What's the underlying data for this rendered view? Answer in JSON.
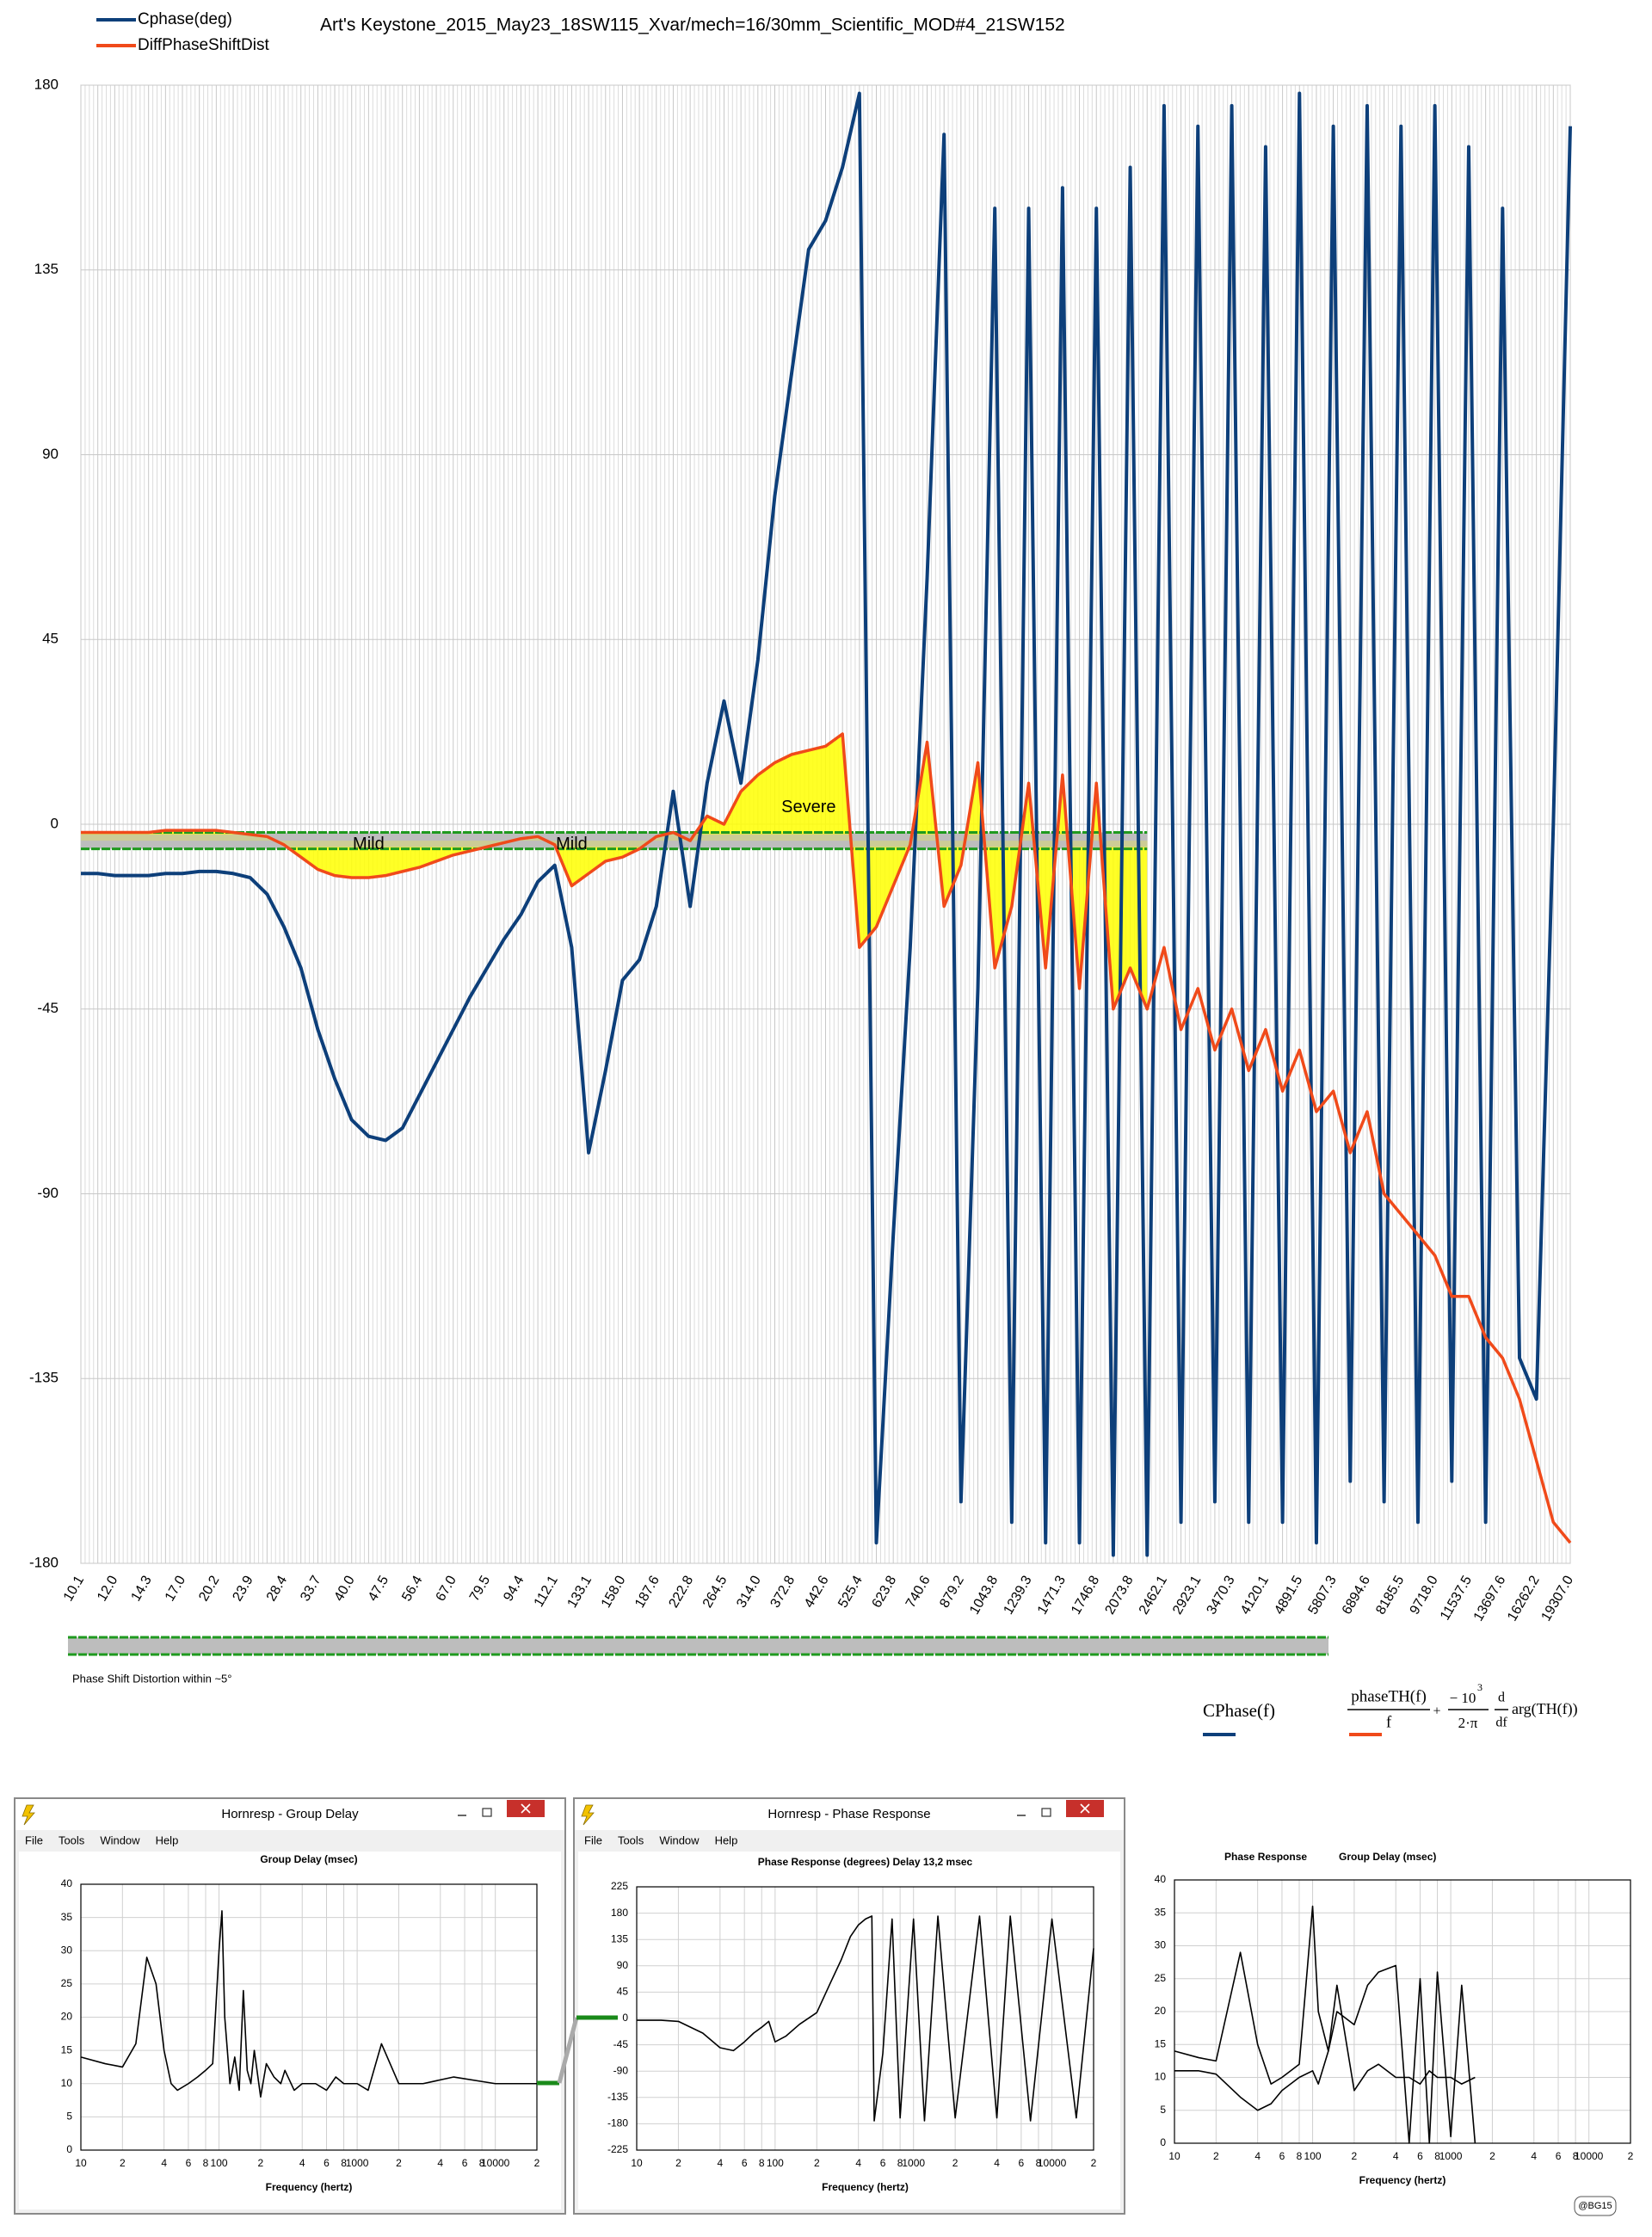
{
  "chart_data": [
    {
      "type": "line",
      "title": "Art's Keystone_2015_May23_18SW115_Xvar/mech=16/30mm_Scientific_MOD#4_21SW152",
      "categories": [
        "10.1",
        null,
        "12.0",
        null,
        "14.3",
        null,
        "17.0",
        null,
        "20.2",
        null,
        "23.9",
        null,
        "28.4",
        null,
        "33.7",
        null,
        "40.0",
        null,
        "47.5",
        null,
        "56.4",
        null,
        "67.0",
        null,
        "79.5",
        null,
        "94.4",
        null,
        "112.1",
        null,
        "133.1",
        null,
        "158.0",
        null,
        "187.6",
        null,
        "222.8",
        null,
        "264.5",
        null,
        "314.0",
        null,
        "372.8",
        null,
        "442.6",
        null,
        "525.4",
        null,
        "623.8",
        null,
        "740.6",
        null,
        "879.2",
        null,
        "1043.8",
        null,
        "1239.3",
        null,
        "1471.3",
        null,
        "1746.8",
        null,
        "2073.8",
        null,
        "2462.1",
        null,
        "2923.1",
        null,
        "3470.3",
        null,
        "4120.1",
        null,
        "4891.5",
        null,
        "5807.3",
        null,
        "6894.6",
        null,
        "8185.5",
        null,
        "9718.0",
        null,
        "11537.5",
        null,
        "13697.6",
        null,
        "16262.2",
        null,
        "19307.0"
      ],
      "series": [
        {
          "name": "Cphase(deg)",
          "color": "#0d3f7a",
          "values": [
            -12,
            -12,
            -12.5,
            -12.5,
            -12.5,
            -12,
            -12,
            -11.5,
            -11.5,
            -12,
            -13,
            -17,
            -25,
            -35,
            -50,
            -62,
            -72,
            -76,
            -77,
            -74,
            -66,
            -58,
            -50,
            -42,
            -35,
            -28,
            -22,
            -14,
            -10,
            -30,
            -80,
            -60,
            -38,
            -33,
            -20,
            8,
            -20,
            10,
            30,
            10,
            40,
            80,
            110,
            140,
            147,
            160,
            178,
            -175,
            -100,
            -30,
            60,
            168,
            -165,
            -40,
            150,
            -170,
            150,
            -175,
            155,
            -175,
            150,
            -178,
            160,
            -178,
            175,
            -170,
            170,
            -165,
            175,
            -170,
            165,
            -170,
            178,
            -175,
            170,
            -160,
            175,
            -165,
            170,
            -170,
            175,
            -160,
            165,
            -170,
            150,
            -130,
            -140,
            0,
            170
          ]
        },
        {
          "name": "DiffPhaseShiftDist",
          "color": "#f04a1a",
          "values": [
            -2,
            -2,
            -2,
            -2,
            -2,
            -1.5,
            -1.5,
            -1.5,
            -1.5,
            -2,
            -2.5,
            -3,
            -5,
            -8,
            -11,
            -12.5,
            -13,
            -13,
            -12.5,
            -11.5,
            -10.5,
            -9,
            -7.5,
            -6.5,
            -5.5,
            -4.5,
            -3.5,
            -3,
            -5,
            -15,
            -12,
            -9,
            -8,
            -6,
            -3,
            -2,
            -4,
            2,
            0,
            8,
            12,
            15,
            17,
            18,
            19,
            22,
            -30,
            -25,
            -15,
            -5,
            20,
            -20,
            -10,
            15,
            -35,
            -20,
            10,
            -35,
            12,
            -40,
            10,
            -45,
            -35,
            -45,
            -30,
            -50,
            -40,
            -55,
            -45,
            -60,
            -50,
            -65,
            -55,
            -70,
            -65,
            -80,
            -70,
            -90,
            -95,
            -100,
            -105,
            -115,
            -115,
            -125,
            -130,
            -140,
            -155,
            -170,
            -175
          ]
        }
      ],
      "ylim": [
        -180,
        180
      ],
      "yticks": [
        -180,
        -135,
        -90,
        -45,
        0,
        45,
        90,
        135,
        180
      ],
      "grid": true,
      "annotations": [
        "Mild",
        "Mild",
        "Severe"
      ],
      "tolerance_band": [
        -6,
        -2
      ],
      "band_label": "Phase Shift Distortion within ~5°",
      "bottom_legend": "CPhase(f)",
      "formula": {
        "num1": "phaseTH(f)",
        "den1": "f",
        "plus": "+",
        "num2": "− 10",
        "exp": "3",
        "den2": "2·π",
        "d": "d",
        "df": "df",
        "tail": "arg(TH(f))"
      }
    },
    {
      "type": "line",
      "window_title": "Hornresp - Group Delay",
      "menu": [
        "File",
        "Tools",
        "Window",
        "Help"
      ],
      "title": "Group Delay (msec)",
      "xlabel": "Frequency (hertz)",
      "log_x": true,
      "x": [
        10,
        15,
        20,
        25,
        30,
        35,
        40,
        45,
        50,
        60,
        70,
        80,
        90,
        100,
        105,
        110,
        120,
        130,
        140,
        150,
        160,
        170,
        180,
        200,
        220,
        250,
        280,
        300,
        350,
        400,
        500,
        600,
        700,
        800,
        1000,
        1200,
        1500,
        2000,
        3000,
        5000,
        10000,
        20000
      ],
      "values": [
        14,
        13,
        12.5,
        16,
        29,
        25,
        15,
        10,
        9,
        10,
        11,
        12,
        13,
        30,
        36,
        20,
        10,
        14,
        9,
        24,
        12,
        10,
        15,
        8,
        13,
        11,
        10,
        12,
        9,
        10,
        10,
        9,
        11,
        10,
        10,
        9,
        16,
        10,
        10,
        11,
        10,
        10
      ],
      "color": "#000000",
      "xlim": [
        10,
        20000
      ],
      "xticks": [
        10,
        {
          "value": 20,
          "label": "2"
        },
        {
          "value": 40,
          "label": "4"
        },
        {
          "value": 60,
          "label": "6"
        },
        {
          "value": 80,
          "label": "8"
        },
        100,
        {
          "value": 200,
          "label": "2"
        },
        {
          "value": 400,
          "label": "4"
        },
        {
          "value": 600,
          "label": "6"
        },
        {
          "value": 800,
          "label": "8"
        },
        1000,
        {
          "value": 2000,
          "label": "2"
        },
        {
          "value": 4000,
          "label": "4"
        },
        {
          "value": 6000,
          "label": "6"
        },
        {
          "value": 8000,
          "label": "8"
        },
        10000,
        {
          "value": 20000,
          "label": "2"
        }
      ],
      "ylim": [
        0,
        40
      ],
      "yticks": [
        0,
        5,
        10,
        15,
        20,
        25,
        30,
        35,
        40
      ]
    },
    {
      "type": "line",
      "window_title": "Hornresp - Phase Response",
      "menu": [
        "File",
        "Tools",
        "Window",
        "Help"
      ],
      "title": "Phase Response (degrees)   Delay 13,2 msec",
      "xlabel": "Frequency (hertz)",
      "log_x": true,
      "x": [
        10,
        15,
        20,
        30,
        40,
        50,
        60,
        70,
        80,
        90,
        100,
        120,
        150,
        200,
        250,
        300,
        350,
        400,
        450,
        500,
        520,
        600,
        700,
        800,
        1000,
        1200,
        1500,
        2000,
        3000,
        4000,
        5000,
        7000,
        10000,
        15000,
        20000
      ],
      "values": [
        -3,
        -3,
        -5,
        -25,
        -50,
        -55,
        -40,
        -25,
        -15,
        -5,
        -40,
        -30,
        -10,
        10,
        60,
        100,
        140,
        160,
        170,
        175,
        -175,
        -60,
        170,
        -170,
        170,
        -175,
        175,
        -170,
        175,
        -170,
        175,
        -175,
        170,
        -170,
        120
      ],
      "color": "#000000",
      "xlim": [
        10,
        20000
      ],
      "xticks": [
        10,
        {
          "value": 20,
          "label": "2"
        },
        {
          "value": 40,
          "label": "4"
        },
        {
          "value": 60,
          "label": "6"
        },
        {
          "value": 80,
          "label": "8"
        },
        100,
        {
          "value": 200,
          "label": "2"
        },
        {
          "value": 400,
          "label": "4"
        },
        {
          "value": 600,
          "label": "6"
        },
        {
          "value": 800,
          "label": "8"
        },
        1000,
        {
          "value": 2000,
          "label": "2"
        },
        {
          "value": 4000,
          "label": "4"
        },
        {
          "value": 6000,
          "label": "6"
        },
        {
          "value": 8000,
          "label": "8"
        },
        10000,
        {
          "value": 20000,
          "label": "2"
        }
      ],
      "ylim": [
        -225,
        225
      ],
      "yticks": [
        -225,
        -180,
        -135,
        -90,
        -45,
        0,
        45,
        90,
        135,
        180,
        225
      ]
    },
    {
      "type": "line",
      "xlabel": "Frequency (hertz)",
      "log_x": true,
      "x": [
        10,
        15,
        20,
        30,
        40,
        50,
        60,
        80,
        100,
        110,
        130,
        150,
        200,
        250,
        300,
        400,
        500,
        600,
        700,
        800,
        1000,
        1200,
        1500
      ],
      "series": [
        {
          "name": "Phase Response",
          "color": "#000000",
          "values": [
            11,
            11,
            10.5,
            7,
            5,
            6,
            8,
            10,
            11,
            9,
            14,
            20,
            18,
            24,
            26,
            27,
            0,
            25,
            0,
            26,
            1,
            24,
            0
          ]
        },
        {
          "name": "Group Delay (msec)",
          "color": "#000000",
          "values": [
            14,
            13,
            12.5,
            29,
            15,
            9,
            10,
            12,
            36,
            20,
            14,
            24,
            8,
            11,
            12,
            10,
            10,
            9,
            11,
            10,
            10,
            9,
            10
          ]
        }
      ],
      "xlim": [
        10,
        20000
      ],
      "xticks": [
        10,
        {
          "value": 20,
          "label": "2"
        },
        {
          "value": 40,
          "label": "4"
        },
        {
          "value": 60,
          "label": "6"
        },
        {
          "value": 80,
          "label": "8"
        },
        100,
        {
          "value": 200,
          "label": "2"
        },
        {
          "value": 400,
          "label": "4"
        },
        {
          "value": 600,
          "label": "6"
        },
        {
          "value": 800,
          "label": "8"
        },
        1000,
        {
          "value": 2000,
          "label": "2"
        },
        {
          "value": 4000,
          "label": "4"
        },
        {
          "value": 6000,
          "label": "6"
        },
        {
          "value": 8000,
          "label": "8"
        },
        10000,
        {
          "value": 20000,
          "label": "2"
        }
      ],
      "ylim": [
        0,
        40
      ],
      "yticks": [
        0,
        5,
        10,
        15,
        20,
        25,
        30,
        35,
        40
      ]
    }
  ],
  "badge": "@BG15"
}
